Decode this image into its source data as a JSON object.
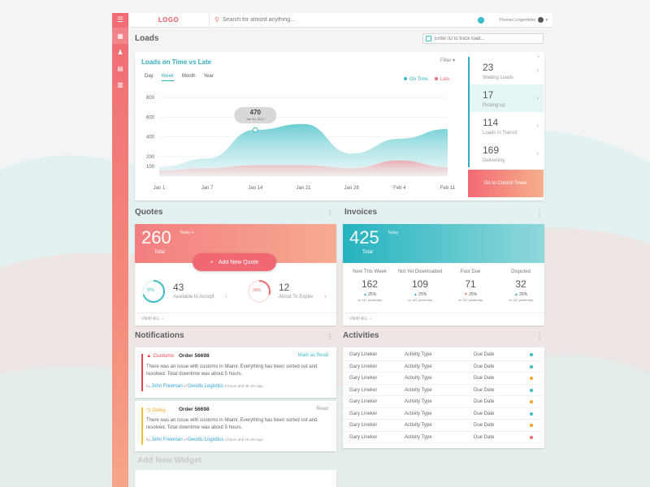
{
  "topbar": {
    "logo": "LOGO",
    "search_placeholder": "Search for almost anything...",
    "user_name": "Thomas Lingenfelter"
  },
  "sidebar": {
    "items": [
      "dashboard-icon",
      "chess-icon",
      "document-icon",
      "file-icon"
    ]
  },
  "loads": {
    "title": "Loads",
    "track_placeholder": "Enter ID to track load...",
    "chart_title": "Loads on Time vs Late",
    "filter": "Filter",
    "tabs": [
      "Day",
      "Week",
      "Month",
      "Year"
    ],
    "active_tab": "Week",
    "legend_on_time": "On Time",
    "legend_late": "Late",
    "tooltip_value": "470",
    "tooltip_date": "Jan 14, 2017",
    "stats": [
      {
        "num": "23",
        "label": "Waiting Loads"
      },
      {
        "num": "17",
        "label": "Picking up"
      },
      {
        "num": "114",
        "label": "Loads in Transit"
      },
      {
        "num": "169",
        "label": "Delivering"
      }
    ],
    "control_tower": "Go to Control Tower"
  },
  "chart_data": {
    "type": "area",
    "title": "Loads on Time vs Late",
    "x": [
      "Jan 1",
      "Jan 7",
      "Jan 14",
      "Jan 21",
      "Jan 28",
      "Feb 4",
      "Feb 11"
    ],
    "yticks": [
      100,
      200,
      400,
      600,
      800
    ],
    "ylim": [
      0,
      850
    ],
    "series": [
      {
        "name": "On Time",
        "values": [
          90,
          180,
          470,
          530,
          230,
          380,
          480
        ]
      },
      {
        "name": "Late",
        "values": [
          60,
          80,
          110,
          110,
          80,
          160,
          90
        ]
      }
    ],
    "legend": "top-right",
    "grid": true
  },
  "quotes": {
    "title": "Quotes",
    "total": "260",
    "total_label": "Total",
    "today": "Today",
    "add_button": "Add New Quote",
    "metrics": [
      {
        "pct": "70%",
        "num": "43",
        "label": "Available to Accept",
        "pct_value": 0.7
      },
      {
        "pct": "30%",
        "num": "12",
        "label": "About To Expire",
        "pct_value": 0.3
      }
    ],
    "view_all": "VIEW ALL"
  },
  "invoices": {
    "title": "Invoices",
    "total": "425",
    "total_label": "Total",
    "today": "Today",
    "cols": [
      {
        "h": "New This Week",
        "n": "162",
        "p": "25%",
        "dir": "up",
        "y": "vs 142 yesterday"
      },
      {
        "h": "Not Yet Downloaded",
        "n": "109",
        "p": "25%",
        "dir": "up",
        "y": "vs 142 yesterday"
      },
      {
        "h": "Past Due",
        "n": "71",
        "p": "25%",
        "dir": "down",
        "y": "vs 142 yesterday"
      },
      {
        "h": "Disputed",
        "n": "32",
        "p": "25%",
        "dir": "up",
        "y": "vs 142 yesterday"
      }
    ],
    "view_all": "VIEW ALL"
  },
  "notifications": {
    "title": "Notifications",
    "items": [
      {
        "tag": "Customs",
        "order": "Order 56698",
        "action": "Mark as Read",
        "msg": "There was an issue with customs in Miami. Everything has been sorted out and resolved. Total downtime was about 5 hours.",
        "by": "by",
        "person": "John Freeman",
        "of": "of",
        "company": "Geodis Logistics",
        "time": "2 hours and 35 min ago",
        "color": "#e8434b"
      },
      {
        "tag": "Delay",
        "order": "Order 56698",
        "action": "Read",
        "msg": "There was an issue with customs in Miami. Everything has been sorted out and resolved. Total downtime was about 5 hours.",
        "by": "by",
        "person": "John Freeman",
        "of": "of",
        "company": "Geodis Logistics",
        "time": "4 hours and 15 min ago",
        "color": "#f2c12e"
      }
    ]
  },
  "activities": {
    "title": "Activities",
    "rows": [
      {
        "name": "Gary Lineker",
        "type": "Activity Type",
        "due": "Due Date",
        "color": "#3cbdc8"
      },
      {
        "name": "Gary Lineker",
        "type": "Activity Type",
        "due": "Due Date",
        "color": "#3cbdc8"
      },
      {
        "name": "Gary Lineker",
        "type": "Activity Type",
        "due": "Due Date",
        "color": "#f5a623"
      },
      {
        "name": "Gary Lineker",
        "type": "Activity Type",
        "due": "Due Date",
        "color": "#3cbdc8"
      },
      {
        "name": "Gary Lineker",
        "type": "Activity Type",
        "due": "Due Date",
        "color": "#f5a623"
      },
      {
        "name": "Gary Lineker",
        "type": "Activity Type",
        "due": "Due Date",
        "color": "#3cbdc8"
      },
      {
        "name": "Gary Lineker",
        "type": "Activity Type",
        "due": "Due Date",
        "color": "#f5a623"
      },
      {
        "name": "Gary Lineker",
        "type": "Activity Type",
        "due": "Due Date",
        "color": "#ef6c72"
      }
    ]
  },
  "add_widget": "Add New Widget"
}
